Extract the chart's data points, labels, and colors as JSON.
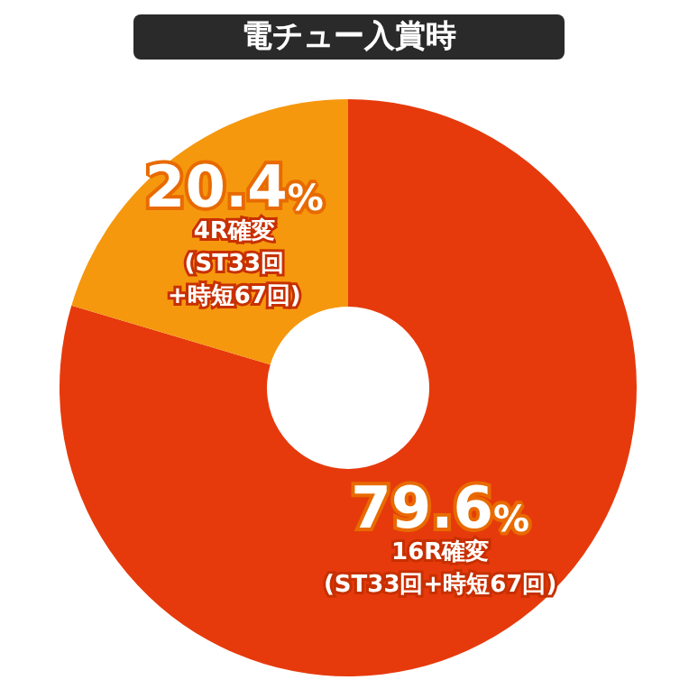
{
  "chart_data": {
    "type": "donut",
    "title": "電チュー入賞時",
    "categories": [
      "16R確変 (ST33回+時短67回)",
      "4R確変 (ST33回 +時短67回)"
    ],
    "values": [
      79.6,
      20.4
    ],
    "colors": [
      "#e63a0c",
      "#f5980e"
    ],
    "value_labels": [
      "79.6%",
      "20.4%"
    ],
    "legend": false
  }
}
